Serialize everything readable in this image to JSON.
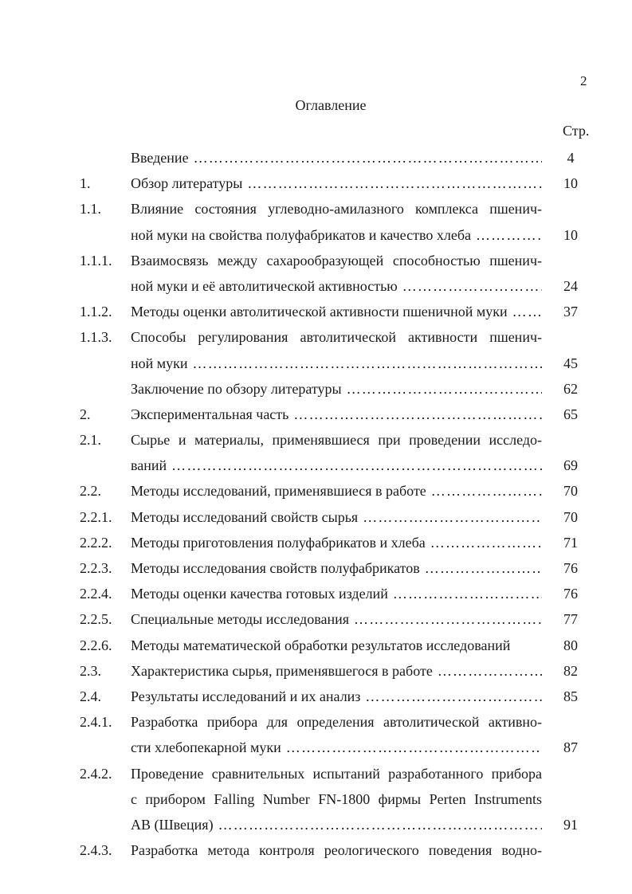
{
  "page_number": "2",
  "title": "Оглавление",
  "page_col_label": "Стр.",
  "entries": [
    {
      "num": "",
      "lines": [
        "Введение"
      ],
      "page": "4"
    },
    {
      "num": "1.",
      "lines": [
        "Обзор литературы"
      ],
      "page": "10"
    },
    {
      "num": "1.1.",
      "lines": [
        "Влияние состояния углеводно-амилазного комплекса пшенич-",
        "ной муки на свойства полуфабрикатов и качество хлеба"
      ],
      "page": "10"
    },
    {
      "num": "1.1.1.",
      "lines": [
        "Взаимосвязь между сахарообразующей способностью пшенич-",
        "ной муки и её автолитической активностью"
      ],
      "page": "24"
    },
    {
      "num": "1.1.2.",
      "lines": [
        "Методы оценки автолитической активности пшеничной муки"
      ],
      "page": "37"
    },
    {
      "num": "1.1.3.",
      "lines": [
        "Способы регулирования автолитической активности пшенич-",
        "ной муки"
      ],
      "page": "45"
    },
    {
      "num": "",
      "lines": [
        "Заключение по обзору литературы"
      ],
      "page": "62"
    },
    {
      "num": "2.",
      "lines": [
        "Экспериментальная часть"
      ],
      "page": "65"
    },
    {
      "num": "2.1.",
      "lines": [
        "Сырье и материалы, применявшиеся при проведении исследо-",
        "ваний"
      ],
      "page": "69"
    },
    {
      "num": "2.2.",
      "lines": [
        "Методы исследований, применявшиеся в работе"
      ],
      "page": "70"
    },
    {
      "num": "2.2.1.",
      "lines": [
        "Методы исследований свойств сырья"
      ],
      "page": "70"
    },
    {
      "num": "2.2.2.",
      "lines": [
        "Методы приготовления полуфабрикатов и хлеба"
      ],
      "page": "71"
    },
    {
      "num": "2.2.3.",
      "lines": [
        "Методы исследования свойств полуфабрикатов"
      ],
      "page": "76"
    },
    {
      "num": "2.2.4.",
      "lines": [
        "Методы оценки качества готовых изделий"
      ],
      "page": "76"
    },
    {
      "num": "2.2.5.",
      "lines": [
        "Специальные методы исследования"
      ],
      "page": "77"
    },
    {
      "num": "2.2.6.",
      "lines": [
        "Методы математической обработки результатов исследований"
      ],
      "page": "80",
      "no_leader": true
    },
    {
      "num": "2.3.",
      "lines": [
        "Характеристика сырья, применявшегося в работе"
      ],
      "page": "82"
    },
    {
      "num": "2.4.",
      "lines": [
        "Результаты исследований и их анализ"
      ],
      "page": "85"
    },
    {
      "num": "2.4.1.",
      "lines": [
        "Разработка прибора для определения автолитической активно-",
        "сти хлебопекарной муки"
      ],
      "page": "87"
    },
    {
      "num": "2.4.2.",
      "lines": [
        "Проведение сравнительных испытаний разработанного прибора",
        "с прибором Falling Number FN-1800 фирмы Perten Instruments",
        "AB (Швеция)"
      ],
      "page": "91"
    },
    {
      "num": "2.4.3.",
      "lines": [
        "Разработка метода контроля реологического поведения водно-"
      ],
      "page": "",
      "continues": true
    }
  ]
}
